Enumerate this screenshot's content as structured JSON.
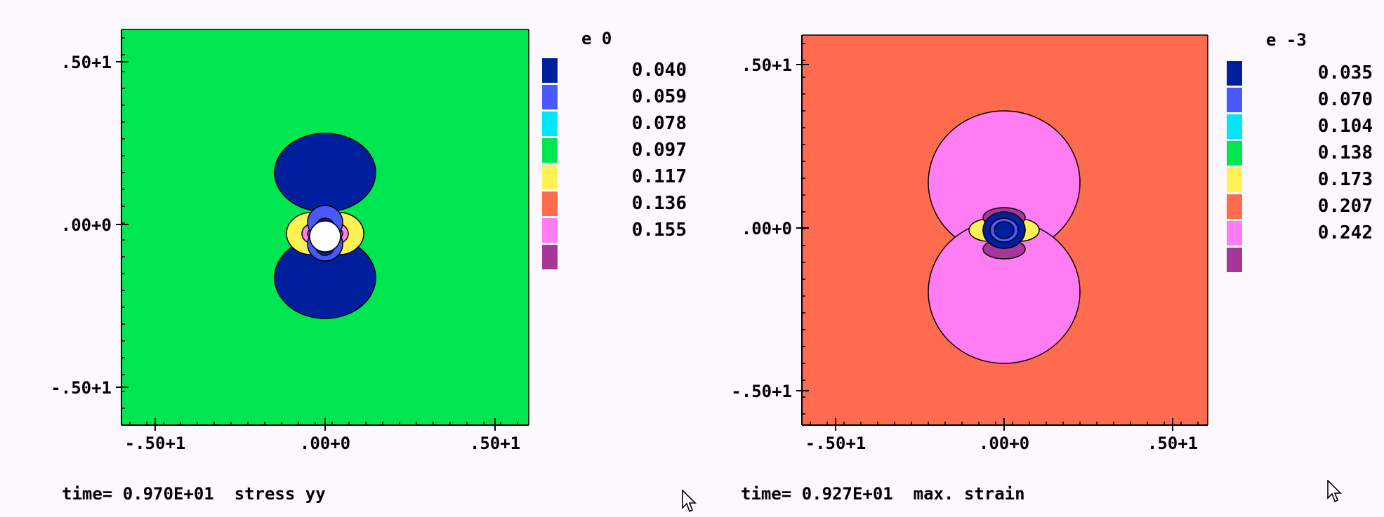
{
  "chart_data": [
    {
      "type": "heatmap",
      "title": "",
      "xlabel": "",
      "ylabel": "",
      "x_ticks": [
        ".50+1",
        ".00+0",
        ".50+1"
      ],
      "y_ticks": [
        ".50+1",
        ".00+0",
        ".50+1"
      ],
      "xlim": [
        -6,
        6
      ],
      "ylim": [
        -6,
        6
      ],
      "legend": {
        "placement": "right",
        "exponent_label": "e  0",
        "values": [
          "0.040",
          "0.059",
          "0.078",
          "0.097",
          "0.117",
          "0.136",
          "0.155"
        ],
        "colors": [
          "#001f9e",
          "#4a58fe",
          "#00e6fb",
          "#00e651",
          "#fdf154",
          "#ff6b4e",
          "#ff7cf2",
          "#a6369a"
        ]
      },
      "caption": "time= 0.970E+01  stress yy",
      "field_background": "#00e651"
    },
    {
      "type": "heatmap",
      "title": "",
      "xlabel": "",
      "ylabel": "",
      "x_ticks": [
        ".50+1",
        ".00+0",
        ".50+1"
      ],
      "y_ticks": [
        ".50+1",
        ".00+0",
        ".50+1"
      ],
      "xlim": [
        -6,
        6
      ],
      "ylim": [
        -6,
        6
      ],
      "legend": {
        "placement": "right",
        "exponent_label": "e -3",
        "values": [
          "0.035",
          "0.070",
          "0.104",
          "0.138",
          "0.173",
          "0.207",
          "0.242"
        ],
        "colors": [
          "#001f9e",
          "#4a58fe",
          "#00e6fb",
          "#00e651",
          "#fdf154",
          "#ff6b4e",
          "#ff7cf2",
          "#a6369a"
        ]
      },
      "caption": "time= 0.927E+01  max. strain",
      "field_background": "#ff6b4e"
    }
  ]
}
